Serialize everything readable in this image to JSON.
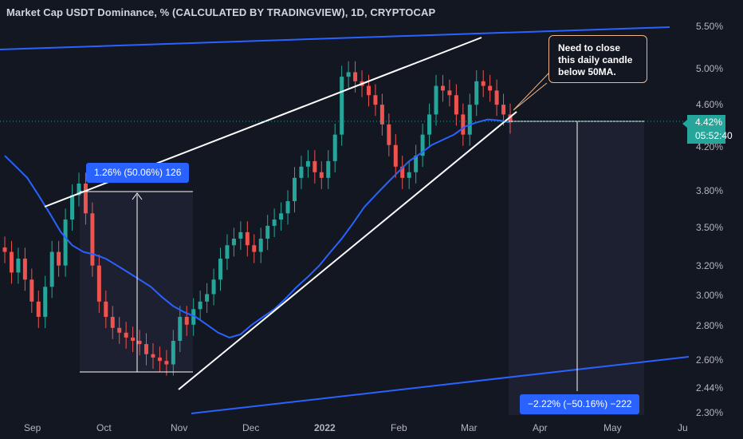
{
  "header": {
    "title": "Market Cap USDT Dominance, % (CALCULATED BY TRADINGVIEW), 1D, CRYPTOCAP"
  },
  "price_tag": {
    "value": "4.42%",
    "countdown": "05:52:40"
  },
  "annotations": {
    "callout": "Need to close\nthis daily candle\nbelow 50MA.",
    "measure_up": "1.26% (50.06%) 126",
    "measure_down": "−2.22% (−50.16%) −222"
  },
  "colors": {
    "background": "#131722",
    "up": "#26a69a",
    "down": "#ef5350",
    "ma": "#2962ff",
    "trendline": "#ffffff",
    "channel": "#2962ff"
  },
  "chart_data": {
    "type": "candlestick",
    "title": "Market Cap USDT Dominance, % (CALCULATED BY TRADINGVIEW), 1D, CRYPTOCAP",
    "x_ticks": [
      "Sep",
      "Oct",
      "Nov",
      "Dec",
      "2022",
      "Feb",
      "Mar",
      "Apr",
      "May",
      "Ju"
    ],
    "y_ticks": [
      "5.50%",
      "5.00%",
      "4.60%",
      "4.20%",
      "3.80%",
      "3.50%",
      "3.20%",
      "3.00%",
      "2.80%",
      "2.60%",
      "2.44%",
      "2.30%"
    ],
    "y_scale": "log",
    "last_value": 4.42,
    "series": [
      {
        "name": "MA 50",
        "values": [
          4.1,
          4.0,
          3.9,
          3.75,
          3.6,
          3.45,
          3.35,
          3.3,
          3.28,
          3.25,
          3.2,
          3.15,
          3.1,
          3.05,
          2.98,
          2.92,
          2.88,
          2.85,
          2.8,
          2.75,
          2.72,
          2.74,
          2.8,
          2.85,
          2.9,
          2.97,
          3.05,
          3.12,
          3.2,
          3.3,
          3.4,
          3.52,
          3.65,
          3.75,
          3.85,
          3.95,
          4.05,
          4.12,
          4.2,
          4.25,
          4.3,
          4.38,
          4.42,
          4.45,
          4.44,
          4.42
        ]
      }
    ],
    "candles_close": [
      3.3,
      3.15,
      3.25,
      3.1,
      2.95,
      2.85,
      3.05,
      3.3,
      3.2,
      3.55,
      3.75,
      3.85,
      3.6,
      3.2,
      2.95,
      2.85,
      2.78,
      2.75,
      2.72,
      2.7,
      2.68,
      2.62,
      2.6,
      2.58,
      2.56,
      2.7,
      2.85,
      2.8,
      2.9,
      2.95,
      3.0,
      3.1,
      3.25,
      3.35,
      3.4,
      3.45,
      3.35,
      3.3,
      3.4,
      3.5,
      3.55,
      3.6,
      3.7,
      3.9,
      4.0,
      4.05,
      3.95,
      3.9,
      4.05,
      4.3,
      4.9,
      4.95,
      4.85,
      4.8,
      4.7,
      4.6,
      4.4,
      4.2,
      4.0,
      3.9,
      3.95,
      4.1,
      4.3,
      4.5,
      4.8,
      4.75,
      4.7,
      4.5,
      4.3,
      4.6,
      4.85,
      4.8,
      4.75,
      4.6,
      4.5,
      4.42
    ]
  }
}
